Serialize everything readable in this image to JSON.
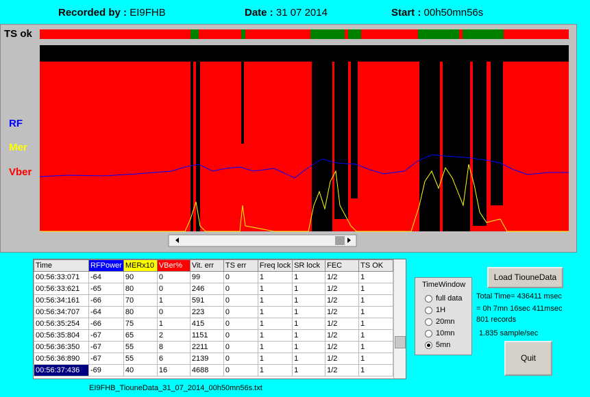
{
  "header": {
    "recorded_label": "Recorded by :",
    "recorded_value": "EI9FHB",
    "date_label": "Date :",
    "date_value": "31 07 2014",
    "start_label": "Start :",
    "start_value": "00h50mn56s"
  },
  "plot": {
    "ts_label": "TS ok",
    "legend": [
      "RF",
      "Mer",
      "Vber"
    ]
  },
  "table": {
    "columns": [
      "Time",
      "RFPower",
      "MERx10",
      "VBer%",
      "Vit. err",
      "TS err",
      "Freq lock",
      "SR lock",
      "FEC",
      "TS OK"
    ],
    "rows": [
      [
        "00:56:33:071",
        "-64",
        "90",
        "0",
        "99",
        "0",
        "1",
        "1",
        "1/2",
        "1"
      ],
      [
        "00:56:33:621",
        "-65",
        "80",
        "0",
        "246",
        "0",
        "1",
        "1",
        "1/2",
        "1"
      ],
      [
        "00:56:34:161",
        "-66",
        "70",
        "1",
        "591",
        "0",
        "1",
        "1",
        "1/2",
        "1"
      ],
      [
        "00:56:34:707",
        "-64",
        "80",
        "0",
        "223",
        "0",
        "1",
        "1",
        "1/2",
        "1"
      ],
      [
        "00:56:35:254",
        "-66",
        "75",
        "1",
        "415",
        "0",
        "1",
        "1",
        "1/2",
        "1"
      ],
      [
        "00:56:35:804",
        "-67",
        "65",
        "2",
        "1151",
        "0",
        "1",
        "1",
        "1/2",
        "1"
      ],
      [
        "00:56:36:350",
        "-67",
        "55",
        "8",
        "2211",
        "0",
        "1",
        "1",
        "1/2",
        "1"
      ],
      [
        "00:56:36:890",
        "-67",
        "55",
        "6",
        "2139",
        "0",
        "1",
        "1",
        "1/2",
        "1"
      ],
      [
        "00:56:37:436",
        "-69",
        "40",
        "16",
        "4688",
        "0",
        "1",
        "1",
        "1/2",
        "1"
      ]
    ]
  },
  "filename": "EI9FHB_TiouneData_31_07_2014_00h50mn56s.txt",
  "time_window": {
    "title": "TimeWindow",
    "options": [
      "full data",
      "1H",
      "20mn",
      "10mn",
      "5mn"
    ],
    "selected": 4
  },
  "load_button": "Load TiouneData",
  "stats": [
    "Total Time= 436411 msec",
    "= 0h 7mn 16sec 411msec",
    "801 records",
    "1.835 sample/sec"
  ],
  "quit_button": "Quit"
}
